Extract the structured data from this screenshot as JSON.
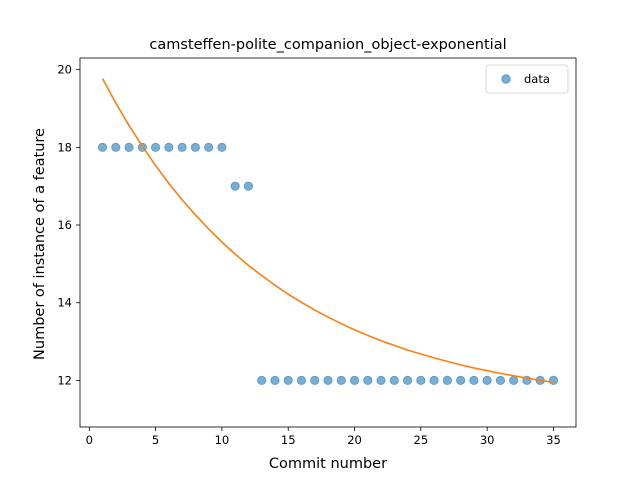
{
  "chart_data": {
    "type": "scatter",
    "title": "camsteffen-polite_companion_object-exponential",
    "xlabel": "Commit number",
    "ylabel": "Number of instance of a feature",
    "xlim": [
      -0.7,
      36.7
    ],
    "ylim": [
      10.8,
      20.3
    ],
    "xticks": [
      0,
      5,
      10,
      15,
      20,
      25,
      30,
      35
    ],
    "yticks": [
      12,
      14,
      16,
      18,
      20
    ],
    "legend_position": "top-right",
    "series": [
      {
        "name": "data",
        "kind": "points",
        "color": "#1f77b4",
        "x": [
          1,
          2,
          3,
          4,
          5,
          6,
          7,
          8,
          9,
          10,
          11,
          12,
          13,
          14,
          15,
          16,
          17,
          18,
          19,
          20,
          21,
          22,
          23,
          24,
          25,
          26,
          27,
          28,
          29,
          30,
          31,
          32,
          33,
          34,
          35
        ],
        "y": [
          18,
          18,
          18,
          18,
          18,
          18,
          18,
          18,
          18,
          18,
          17,
          17,
          12,
          12,
          12,
          12,
          12,
          12,
          12,
          12,
          12,
          12,
          12,
          12,
          12,
          12,
          12,
          12,
          12,
          12,
          12,
          12,
          12,
          12,
          12
        ]
      },
      {
        "kind": "line",
        "color": "#ff7f0e",
        "x": [
          1,
          2,
          3,
          4,
          5,
          6,
          7,
          8,
          9,
          10,
          11,
          12,
          13,
          14,
          15,
          16,
          17,
          18,
          19,
          20,
          21,
          22,
          23,
          24,
          25,
          26,
          27,
          28,
          29,
          30,
          31,
          32,
          33,
          34,
          35
        ],
        "y": [
          19.77,
          19.14,
          18.56,
          18.03,
          17.53,
          17.07,
          16.65,
          16.26,
          15.9,
          15.56,
          15.25,
          14.96,
          14.7,
          14.45,
          14.22,
          14.01,
          13.81,
          13.63,
          13.46,
          13.3,
          13.16,
          13.02,
          12.9,
          12.78,
          12.68,
          12.58,
          12.49,
          12.4,
          12.32,
          12.25,
          12.18,
          12.12,
          12.06,
          12.0,
          11.95
        ]
      }
    ]
  }
}
